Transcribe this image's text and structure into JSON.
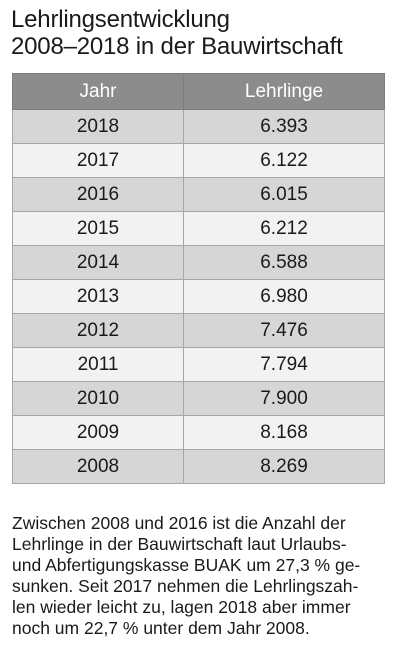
{
  "title": {
    "line1": "Lehrlingsentwicklung",
    "line2": "2008–2018 in der Bauwirtschaft"
  },
  "table": {
    "headers": [
      "Jahr",
      "Lehrlinge"
    ],
    "rows": [
      [
        "2018",
        "6.393"
      ],
      [
        "2017",
        "6.122"
      ],
      [
        "2016",
        "6.015"
      ],
      [
        "2015",
        "6.212"
      ],
      [
        "2014",
        "6.588"
      ],
      [
        "2013",
        "6.980"
      ],
      [
        "2012",
        "7.476"
      ],
      [
        "2011",
        "7.794"
      ],
      [
        "2010",
        "7.900"
      ],
      [
        "2009",
        "8.168"
      ],
      [
        "2008",
        "8.269"
      ]
    ]
  },
  "note": {
    "lines": [
      "Zwischen 2008 und 2016 ist die Anzahl der",
      "Lehrlinge in der Bauwirtschaft laut Urlaubs-",
      "und Abfertigungskasse BUAK um 27,3 % ge-",
      "sunken. Seit 2017 nehmen die Lehrlingszah-",
      "len wieder leicht zu, lagen 2018 aber immer",
      "noch um 22,7 % unter dem Jahr 2008."
    ]
  },
  "colors": {
    "header_bg": "#8c8c8c",
    "row_dark": "#d6d6d6",
    "row_light": "#f2f2f2"
  }
}
